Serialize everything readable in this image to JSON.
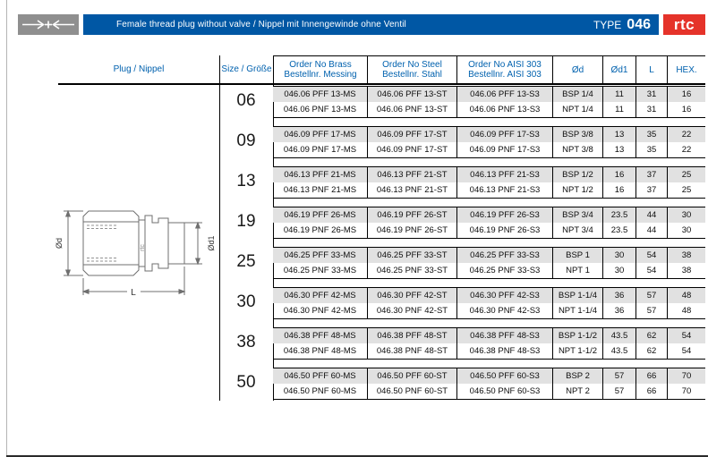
{
  "title_bar": {
    "title": "Female thread plug without valve / Nippel mit Innengewinde ohne Ventil",
    "type_label": "TYPE",
    "type_value": "046",
    "brand": "rtc",
    "colors": {
      "bar_blue": "#0057a4",
      "brand_red": "#e5332a",
      "icon_gray": "#8f8f8f"
    }
  },
  "drawing": {
    "labels": {
      "od": "Ød",
      "od1": "Ød1",
      "length": "L",
      "brand": "rtc"
    }
  },
  "table": {
    "colors": {
      "header_text": "#0061ae",
      "shaded_row": "#e1e1e1"
    },
    "headers": {
      "plug": "Plug / Nippel",
      "size": "Size / Größe",
      "brass_en": "Order No Brass",
      "brass_de": "Bestellnr. Messing",
      "steel_en": "Order No Steel",
      "steel_de": "Bestellnr. Stahl",
      "aisi_en": "Order No AISI 303",
      "aisi_de": "Bestellnr. AISI 303",
      "od": "Ød",
      "od1": "Ød1",
      "length": "L",
      "hex": "HEX."
    },
    "column_keys": [
      "brass",
      "steel",
      "aisi",
      "od",
      "od1",
      "l",
      "hex"
    ],
    "groups": [
      {
        "size": "06",
        "rows": [
          {
            "brass": "046.06 PFF 13-MS",
            "steel": "046.06 PFF 13-ST",
            "aisi": "046.06 PFF 13-S3",
            "od": "BSP 1/4",
            "od1": "11",
            "l": "31",
            "hex": "16"
          },
          {
            "brass": "046.06 PNF 13-MS",
            "steel": "046.06 PNF 13-ST",
            "aisi": "046.06 PNF 13-S3",
            "od": "NPT 1/4",
            "od1": "11",
            "l": "31",
            "hex": "16"
          }
        ]
      },
      {
        "size": "09",
        "rows": [
          {
            "brass": "046.09 PFF 17-MS",
            "steel": "046.09 PFF 17-ST",
            "aisi": "046.09 PFF 17-S3",
            "od": "BSP 3/8",
            "od1": "13",
            "l": "35",
            "hex": "22"
          },
          {
            "brass": "046.09 PNF 17-MS",
            "steel": "046.09 PNF 17-ST",
            "aisi": "046.09 PNF 17-S3",
            "od": "NPT 3/8",
            "od1": "13",
            "l": "35",
            "hex": "22"
          }
        ]
      },
      {
        "size": "13",
        "rows": [
          {
            "brass": "046.13 PFF 21-MS",
            "steel": "046.13 PFF 21-ST",
            "aisi": "046.13 PFF 21-S3",
            "od": "BSP 1/2",
            "od1": "16",
            "l": "37",
            "hex": "25"
          },
          {
            "brass": "046.13 PNF 21-MS",
            "steel": "046.13 PNF 21-ST",
            "aisi": "046.13 PNF 21-S3",
            "od": "NPT 1/2",
            "od1": "16",
            "l": "37",
            "hex": "25"
          }
        ]
      },
      {
        "size": "19",
        "rows": [
          {
            "brass": "046.19 PFF 26-MS",
            "steel": "046.19 PFF 26-ST",
            "aisi": "046.19 PFF 26-S3",
            "od": "BSP 3/4",
            "od1": "23.5",
            "l": "44",
            "hex": "30"
          },
          {
            "brass": "046.19 PNF 26-MS",
            "steel": "046.19 PNF 26-ST",
            "aisi": "046.19 PNF 26-S3",
            "od": "NPT 3/4",
            "od1": "23.5",
            "l": "44",
            "hex": "30"
          }
        ]
      },
      {
        "size": "25",
        "rows": [
          {
            "brass": "046.25 PFF 33-MS",
            "steel": "046.25 PFF 33-ST",
            "aisi": "046.25 PFF 33-S3",
            "od": "BSP 1",
            "od1": "30",
            "l": "54",
            "hex": "38"
          },
          {
            "brass": "046.25 PNF 33-MS",
            "steel": "046.25 PNF 33-ST",
            "aisi": "046.25 PNF 33-S3",
            "od": "NPT 1",
            "od1": "30",
            "l": "54",
            "hex": "38"
          }
        ]
      },
      {
        "size": "30",
        "rows": [
          {
            "brass": "046.30 PFF 42-MS",
            "steel": "046.30 PFF 42-ST",
            "aisi": "046.30 PFF 42-S3",
            "od": "BSP 1-1/4",
            "od1": "36",
            "l": "57",
            "hex": "48"
          },
          {
            "brass": "046.30 PNF 42-MS",
            "steel": "046.30 PNF 42-ST",
            "aisi": "046.30 PNF 42-S3",
            "od": "NPT 1-1/4",
            "od1": "36",
            "l": "57",
            "hex": "48"
          }
        ]
      },
      {
        "size": "38",
        "rows": [
          {
            "brass": "046.38 PFF 48-MS",
            "steel": "046.38 PFF 48-ST",
            "aisi": "046.38 PFF 48-S3",
            "od": "BSP 1-1/2",
            "od1": "43.5",
            "l": "62",
            "hex": "54"
          },
          {
            "brass": "046.38 PNF 48-MS",
            "steel": "046.38 PNF 48-ST",
            "aisi": "046.38 PNF 48-S3",
            "od": "NPT 1-1/2",
            "od1": "43.5",
            "l": "62",
            "hex": "54"
          }
        ]
      },
      {
        "size": "50",
        "rows": [
          {
            "brass": "046.50 PFF 60-MS",
            "steel": "046.50 PFF 60-ST",
            "aisi": "046.50 PFF 60-S3",
            "od": "BSP 2",
            "od1": "57",
            "l": "66",
            "hex": "70"
          },
          {
            "brass": "046.50 PNF 60-MS",
            "steel": "046.50 PNF 60-ST",
            "aisi": "046.50 PNF 60-S3",
            "od": "NPT 2",
            "od1": "57",
            "l": "66",
            "hex": "70"
          }
        ]
      }
    ]
  }
}
